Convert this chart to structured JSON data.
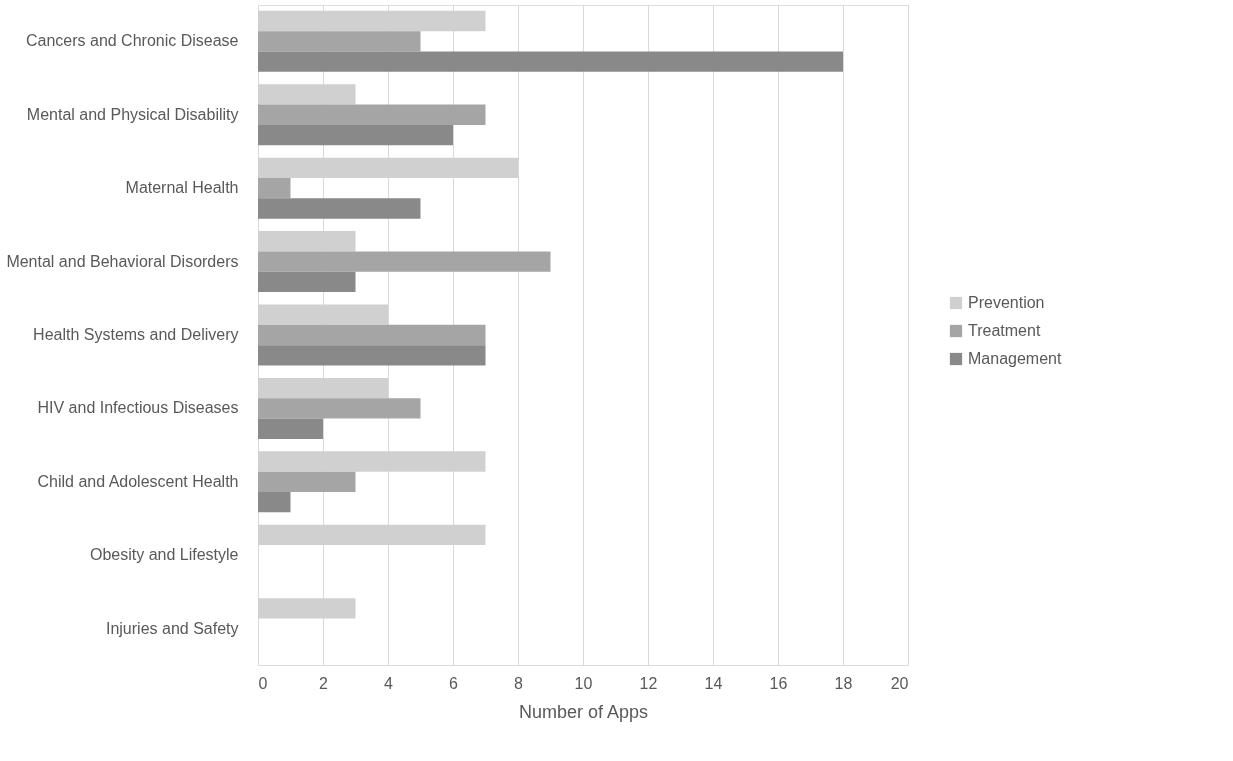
{
  "chart_data": {
    "type": "bar",
    "orientation": "horizontal",
    "xlabel": "Number of Apps",
    "categories": [
      "Cancers and Chronic Disease",
      "Mental and Physical Disability",
      "Maternal Health",
      "Mental and Behavioral Disorders",
      "Health Systems and Delivery",
      "HIV and Infectious Diseases",
      "Child and Adolescent Health",
      "Obesity and Lifestyle",
      "Injuries and Safety"
    ],
    "series": [
      {
        "name": "Prevention",
        "color": "#d0d0d0",
        "values": [
          7,
          3,
          8,
          3,
          4,
          4,
          7,
          7,
          3
        ]
      },
      {
        "name": "Treatment",
        "color": "#a5a5a5",
        "values": [
          5,
          7,
          1,
          9,
          7,
          5,
          3,
          0,
          0
        ]
      },
      {
        "name": "Management",
        "color": "#898989",
        "values": [
          18,
          6,
          5,
          3,
          7,
          2,
          1,
          0,
          0
        ]
      }
    ],
    "xlim": [
      0,
      20
    ],
    "xticks": [
      0,
      2,
      4,
      6,
      8,
      10,
      12,
      14,
      16,
      18,
      20
    ],
    "grid": "x",
    "legend": "right"
  }
}
